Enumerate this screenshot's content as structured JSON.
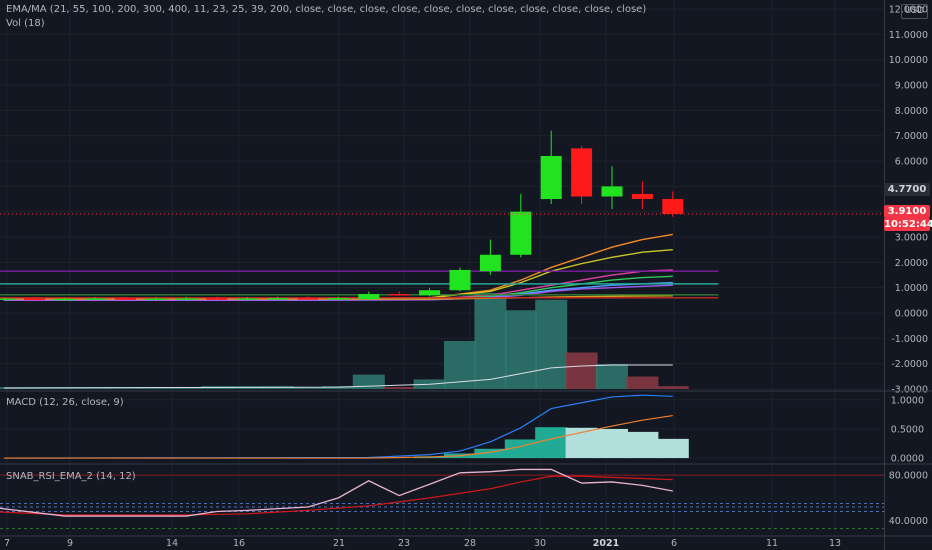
{
  "labels": {
    "ema": "EMA/MA (21, 55, 100, 200, 300, 400, 11, 23, 25, 39, 200, close, close, close, close, close, close, close, close, close, close, close)",
    "vol": "Vol (18)",
    "macd": "MACD (12, 26, close, 9)",
    "rsi": "SNAB_RSI_EMA_2 (14, 12)",
    "currency": "USD"
  },
  "badges": {
    "last_ema": "4.7700",
    "price": "3.9100",
    "countdown": "10:52:44"
  },
  "colors": {
    "background": "#131722",
    "up": "#21e320",
    "down": "#ff1a1a",
    "vol_up": "#2f7a72",
    "vol_down": "#8b3a44",
    "macd_line": "#2a7ff6",
    "signal_line": "#f08030",
    "rsi_line": "#e8b4d0",
    "rsi_ema": "#d01818"
  },
  "chart_data": [
    {
      "type": "candlestick",
      "x_ticks": [
        "7",
        "9",
        "14",
        "16",
        "21",
        "23",
        "28",
        "30",
        "2021",
        "6",
        "11",
        "13"
      ],
      "y_ticks": [
        "12.0000",
        "11.0000",
        "10.0000",
        "9.0000",
        "8.0000",
        "7.0000",
        "6.0000",
        "5.0000",
        "4.0000",
        "3.0000",
        "2.0000",
        "1.0000",
        "0.0000",
        "-1.0000",
        "-2.0000",
        "-3.0000"
      ],
      "ylim": [
        -3,
        12.2
      ],
      "candles": [
        {
          "x": 0.0,
          "open": 0.55,
          "high": 0.6,
          "low": 0.5,
          "close": 0.57
        },
        {
          "x": 1.0,
          "open": 0.57,
          "high": 0.62,
          "low": 0.52,
          "close": 0.55
        },
        {
          "x": 2.0,
          "open": 0.55,
          "high": 0.6,
          "low": 0.5,
          "close": 0.56
        },
        {
          "x": 3.0,
          "open": 0.56,
          "high": 0.62,
          "low": 0.52,
          "close": 0.58
        },
        {
          "x": 4.0,
          "open": 0.58,
          "high": 0.64,
          "low": 0.53,
          "close": 0.56
        },
        {
          "x": 5.0,
          "open": 0.56,
          "high": 0.62,
          "low": 0.52,
          "close": 0.57
        },
        {
          "x": 6.0,
          "open": 0.57,
          "high": 0.63,
          "low": 0.53,
          "close": 0.58
        },
        {
          "x": 7.0,
          "open": 0.58,
          "high": 0.64,
          "low": 0.54,
          "close": 0.57
        },
        {
          "x": 8.0,
          "open": 0.57,
          "high": 0.63,
          "low": 0.53,
          "close": 0.58
        },
        {
          "x": 9.0,
          "open": 0.58,
          "high": 0.64,
          "low": 0.54,
          "close": 0.59
        },
        {
          "x": 10.0,
          "open": 0.59,
          "high": 0.65,
          "low": 0.54,
          "close": 0.57
        },
        {
          "x": 11.0,
          "open": 0.57,
          "high": 0.64,
          "low": 0.53,
          "close": 0.59
        },
        {
          "x": 12.0,
          "open": 0.55,
          "high": 0.85,
          "low": 0.5,
          "close": 0.75
        },
        {
          "x": 13.0,
          "open": 0.75,
          "high": 0.85,
          "low": 0.68,
          "close": 0.7
        },
        {
          "x": 14.0,
          "open": 0.7,
          "high": 1.0,
          "low": 0.65,
          "close": 0.9
        },
        {
          "x": 15.0,
          "open": 0.9,
          "high": 1.8,
          "low": 0.85,
          "close": 1.7
        },
        {
          "x": 16.0,
          "open": 1.65,
          "high": 2.9,
          "low": 1.5,
          "close": 2.3
        },
        {
          "x": 17.0,
          "open": 2.3,
          "high": 4.7,
          "low": 2.2,
          "close": 4.0
        },
        {
          "x": 18.0,
          "open": 4.5,
          "high": 7.2,
          "low": 4.3,
          "close": 6.2
        },
        {
          "x": 19.0,
          "open": 6.5,
          "high": 6.6,
          "low": 4.3,
          "close": 4.6
        },
        {
          "x": 20.0,
          "open": 4.6,
          "high": 5.8,
          "low": 4.1,
          "close": 5.0
        },
        {
          "x": 21.0,
          "open": 4.7,
          "high": 5.2,
          "low": 4.1,
          "close": 4.5
        },
        {
          "x": 22.0,
          "open": 4.5,
          "high": 4.8,
          "low": 3.8,
          "close": 3.91
        }
      ],
      "moving_averages": [
        {
          "color": "#f08a24",
          "values": [
            [
              0,
              0.55
            ],
            [
              8,
              0.55
            ],
            [
              14,
              0.6
            ],
            [
              16,
              0.9
            ],
            [
              17,
              1.3
            ],
            [
              18,
              1.8
            ],
            [
              19,
              2.2
            ],
            [
              20,
              2.6
            ],
            [
              21,
              2.9
            ],
            [
              22,
              3.1
            ]
          ]
        },
        {
          "color": "#c8c828",
          "values": [
            [
              0,
              0.55
            ],
            [
              8,
              0.55
            ],
            [
              14,
              0.6
            ],
            [
              16,
              0.85
            ],
            [
              17,
              1.2
            ],
            [
              18,
              1.65
            ],
            [
              19,
              1.95
            ],
            [
              20,
              2.2
            ],
            [
              21,
              2.4
            ],
            [
              22,
              2.5
            ]
          ]
        },
        {
          "color": "#e040a0",
          "values": [
            [
              0,
              0.5
            ],
            [
              8,
              0.5
            ],
            [
              14,
              0.55
            ],
            [
              16,
              0.7
            ],
            [
              17,
              0.9
            ],
            [
              18,
              1.1
            ],
            [
              19,
              1.3
            ],
            [
              20,
              1.5
            ],
            [
              21,
              1.65
            ],
            [
              22,
              1.7
            ]
          ]
        },
        {
          "color": "#34c759",
          "values": [
            [
              0,
              0.5
            ],
            [
              8,
              0.5
            ],
            [
              14,
              0.55
            ],
            [
              16,
              0.65
            ],
            [
              17,
              0.8
            ],
            [
              18,
              1.0
            ],
            [
              19,
              1.15
            ],
            [
              20,
              1.3
            ],
            [
              21,
              1.4
            ],
            [
              22,
              1.45
            ]
          ]
        },
        {
          "color": "#4aa3ff",
          "values": [
            [
              0,
              0.5
            ],
            [
              8,
              0.5
            ],
            [
              14,
              0.52
            ],
            [
              16,
              0.62
            ],
            [
              17,
              0.75
            ],
            [
              18,
              0.9
            ],
            [
              19,
              1.0
            ],
            [
              20,
              1.1
            ],
            [
              21,
              1.15
            ],
            [
              22,
              1.2
            ]
          ]
        },
        {
          "color": "#9c5cf0",
          "values": [
            [
              0,
              0.5
            ],
            [
              8,
              0.5
            ],
            [
              14,
              0.52
            ],
            [
              16,
              0.6
            ],
            [
              17,
              0.7
            ],
            [
              18,
              0.85
            ],
            [
              19,
              0.95
            ],
            [
              20,
              1.0
            ],
            [
              21,
              1.05
            ],
            [
              22,
              1.1
            ]
          ]
        },
        {
          "color": "#d4a017",
          "values": [
            [
              0,
              0.55
            ],
            [
              8,
              0.55
            ],
            [
              14,
              0.55
            ],
            [
              16,
              0.58
            ],
            [
              17,
              0.6
            ],
            [
              18,
              0.63
            ],
            [
              19,
              0.65
            ],
            [
              20,
              0.66
            ],
            [
              21,
              0.67
            ],
            [
              22,
              0.68
            ]
          ]
        },
        {
          "color": "#7b1fa2",
          "values": [
            [
              -1,
              1.65
            ],
            [
              23.5,
              1.65
            ]
          ]
        },
        {
          "color": "#26a69a",
          "values": [
            [
              -1,
              1.15
            ],
            [
              23.5,
              1.15
            ]
          ]
        },
        {
          "color": "#2e7d32",
          "values": [
            [
              -1,
              0.72
            ],
            [
              23.5,
              0.72
            ]
          ]
        },
        {
          "color": "#c62828",
          "values": [
            [
              -1,
              0.6
            ],
            [
              23.5,
              0.6
            ]
          ]
        }
      ],
      "volume": [
        {
          "x": 0,
          "value": 0.02,
          "up": true
        },
        {
          "x": 1,
          "value": 0.02,
          "up": true
        },
        {
          "x": 2,
          "value": 0.02,
          "up": true
        },
        {
          "x": 3,
          "value": 0.02,
          "up": true
        },
        {
          "x": 4,
          "value": 0.02,
          "up": true
        },
        {
          "x": 5,
          "value": 0.02,
          "up": true
        },
        {
          "x": 6,
          "value": 0.02,
          "up": true
        },
        {
          "x": 7,
          "value": 0.03,
          "up": true
        },
        {
          "x": 8,
          "value": 0.03,
          "up": true
        },
        {
          "x": 9,
          "value": 0.03,
          "up": true
        },
        {
          "x": 10,
          "value": 0.02,
          "up": true
        },
        {
          "x": 11,
          "value": 0.03,
          "up": true
        },
        {
          "x": 12,
          "value": 0.15,
          "up": true
        },
        {
          "x": 13,
          "value": 0.02,
          "up": false
        },
        {
          "x": 14,
          "value": 0.1,
          "up": true
        },
        {
          "x": 15,
          "value": 0.5,
          "up": true
        },
        {
          "x": 16,
          "value": 1.0,
          "up": true
        },
        {
          "x": 17,
          "value": 0.82,
          "up": true
        },
        {
          "x": 18,
          "value": 0.93,
          "up": true
        },
        {
          "x": 19,
          "value": 0.38,
          "up": false
        },
        {
          "x": 20,
          "value": 0.26,
          "up": true
        },
        {
          "x": 21,
          "value": 0.13,
          "up": false
        },
        {
          "x": 22,
          "value": 0.03,
          "up": false
        }
      ],
      "volume_ma": [
        [
          0,
          0.01
        ],
        [
          11,
          0.02
        ],
        [
          14,
          0.05
        ],
        [
          16,
          0.1
        ],
        [
          17,
          0.16
        ],
        [
          18,
          0.22
        ],
        [
          19,
          0.24
        ],
        [
          20,
          0.25
        ],
        [
          22,
          0.25
        ]
      ]
    },
    {
      "type": "macd",
      "y_ticks": [
        "1.0000",
        "0.5000",
        "0.0000"
      ],
      "ylim": [
        -0.05,
        1.1
      ],
      "histogram": [
        [
          14,
          0.03
        ],
        [
          15,
          0.08
        ],
        [
          16,
          0.16
        ],
        [
          17,
          0.32
        ],
        [
          18,
          0.53
        ],
        [
          19,
          0.52
        ],
        [
          20,
          0.5
        ],
        [
          21,
          0.45
        ],
        [
          22,
          0.33
        ]
      ],
      "macd": [
        [
          0,
          0.0
        ],
        [
          12,
          0.01
        ],
        [
          14,
          0.06
        ],
        [
          15,
          0.12
        ],
        [
          16,
          0.28
        ],
        [
          17,
          0.52
        ],
        [
          18,
          0.85
        ],
        [
          19,
          0.95
        ],
        [
          20,
          1.05
        ],
        [
          21,
          1.08
        ],
        [
          22,
          1.06
        ]
      ],
      "signal": [
        [
          0,
          0.0
        ],
        [
          12,
          0.0
        ],
        [
          14,
          0.02
        ],
        [
          15,
          0.04
        ],
        [
          16,
          0.1
        ],
        [
          17,
          0.2
        ],
        [
          18,
          0.33
        ],
        [
          19,
          0.44
        ],
        [
          20,
          0.55
        ],
        [
          21,
          0.65
        ],
        [
          22,
          0.73
        ]
      ]
    },
    {
      "type": "rsi",
      "y_ticks": [
        "80.0000",
        "40.0000"
      ],
      "ylim": [
        30,
        88
      ],
      "rsi": [
        [
          -0.5,
          52
        ],
        [
          2,
          44
        ],
        [
          6,
          44
        ],
        [
          7,
          48
        ],
        [
          8,
          49
        ],
        [
          10,
          52
        ],
        [
          11,
          60
        ],
        [
          12,
          75
        ],
        [
          13,
          62
        ],
        [
          14,
          72
        ],
        [
          15,
          82
        ],
        [
          16,
          83
        ],
        [
          17,
          85
        ],
        [
          18,
          85
        ],
        [
          19,
          73
        ],
        [
          20,
          74
        ],
        [
          21,
          71
        ],
        [
          22,
          66
        ]
      ],
      "rsi_ema": [
        [
          -0.5,
          48
        ],
        [
          2,
          45
        ],
        [
          6,
          45
        ],
        [
          8,
          46
        ],
        [
          10,
          49
        ],
        [
          12,
          53
        ],
        [
          14,
          60
        ],
        [
          16,
          68
        ],
        [
          17,
          74
        ],
        [
          18,
          79
        ],
        [
          19,
          79
        ],
        [
          20,
          78
        ],
        [
          21,
          77
        ],
        [
          22,
          76
        ]
      ],
      "levels": [
        {
          "value": 80,
          "color": "#8a1c24",
          "dash": false
        },
        {
          "value": 55,
          "color": "#4d6fb3",
          "dash": true
        },
        {
          "value": 52,
          "color": "#4d6fb3",
          "dash": true
        },
        {
          "value": 48,
          "color": "#4d6fb3",
          "dash": true
        },
        {
          "value": 33,
          "color": "#2e7d32",
          "dash": true
        }
      ]
    }
  ]
}
